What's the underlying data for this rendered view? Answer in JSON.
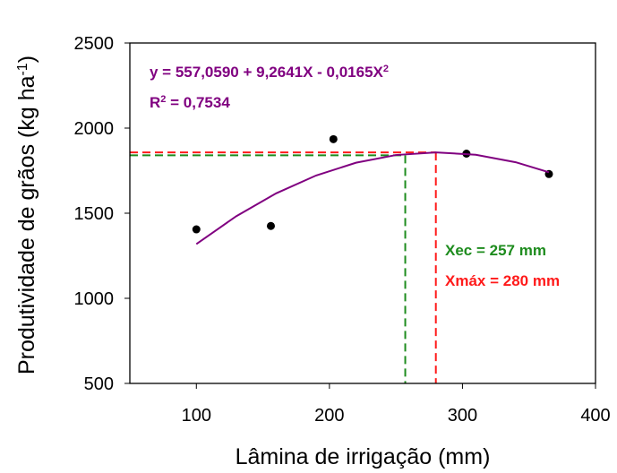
{
  "chart_data": {
    "type": "scatter",
    "x_label": [
      "Lâmina de irrigação (mm)"
    ],
    "y_label": [
      "Produtividade de grãos (kg ha",
      {
        "sup": "-1"
      },
      ")"
    ],
    "xlim": [
      50,
      400
    ],
    "xticks": [
      100,
      200,
      300,
      400
    ],
    "ylim": [
      500,
      2500
    ],
    "yticks": [
      500,
      1000,
      1500,
      2000,
      2500
    ],
    "series": [
      {
        "kind": "points",
        "color": "#000000",
        "x": [
          100,
          156,
          203,
          303,
          365
        ],
        "values": [
          1405,
          1425,
          1935,
          1850,
          1730
        ]
      },
      {
        "kind": "curve",
        "color": "#800080",
        "x": [
          100,
          130,
          160,
          190,
          220,
          250,
          280,
          310,
          340,
          365
        ],
        "values": [
          1318.5,
          1482.5,
          1616.9,
          1721.6,
          1796.6,
          1841.8,
          1857.4,
          1843.3,
          1799.5,
          1740.3
        ]
      }
    ],
    "reference_lines": [
      {
        "color": "#1e8c1e",
        "x": 257,
        "y": 1840
      },
      {
        "color": "#ff1a1a",
        "x": 280,
        "y": 1857
      }
    ],
    "annotations": [
      {
        "color": "#800080",
        "parts": [
          "y = 557,0590 + 9,2641X - 0,0165X",
          {
            "sup": "2"
          }
        ]
      },
      {
        "color": "#800080",
        "parts": [
          "R",
          {
            "sup": "2"
          },
          " = 0,7534"
        ]
      },
      {
        "color": "#1e8c1e",
        "parts": [
          "Xec = 257 mm"
        ]
      },
      {
        "color": "#ff1a1a",
        "parts": [
          "Xmáx = 280 mm"
        ]
      }
    ]
  }
}
